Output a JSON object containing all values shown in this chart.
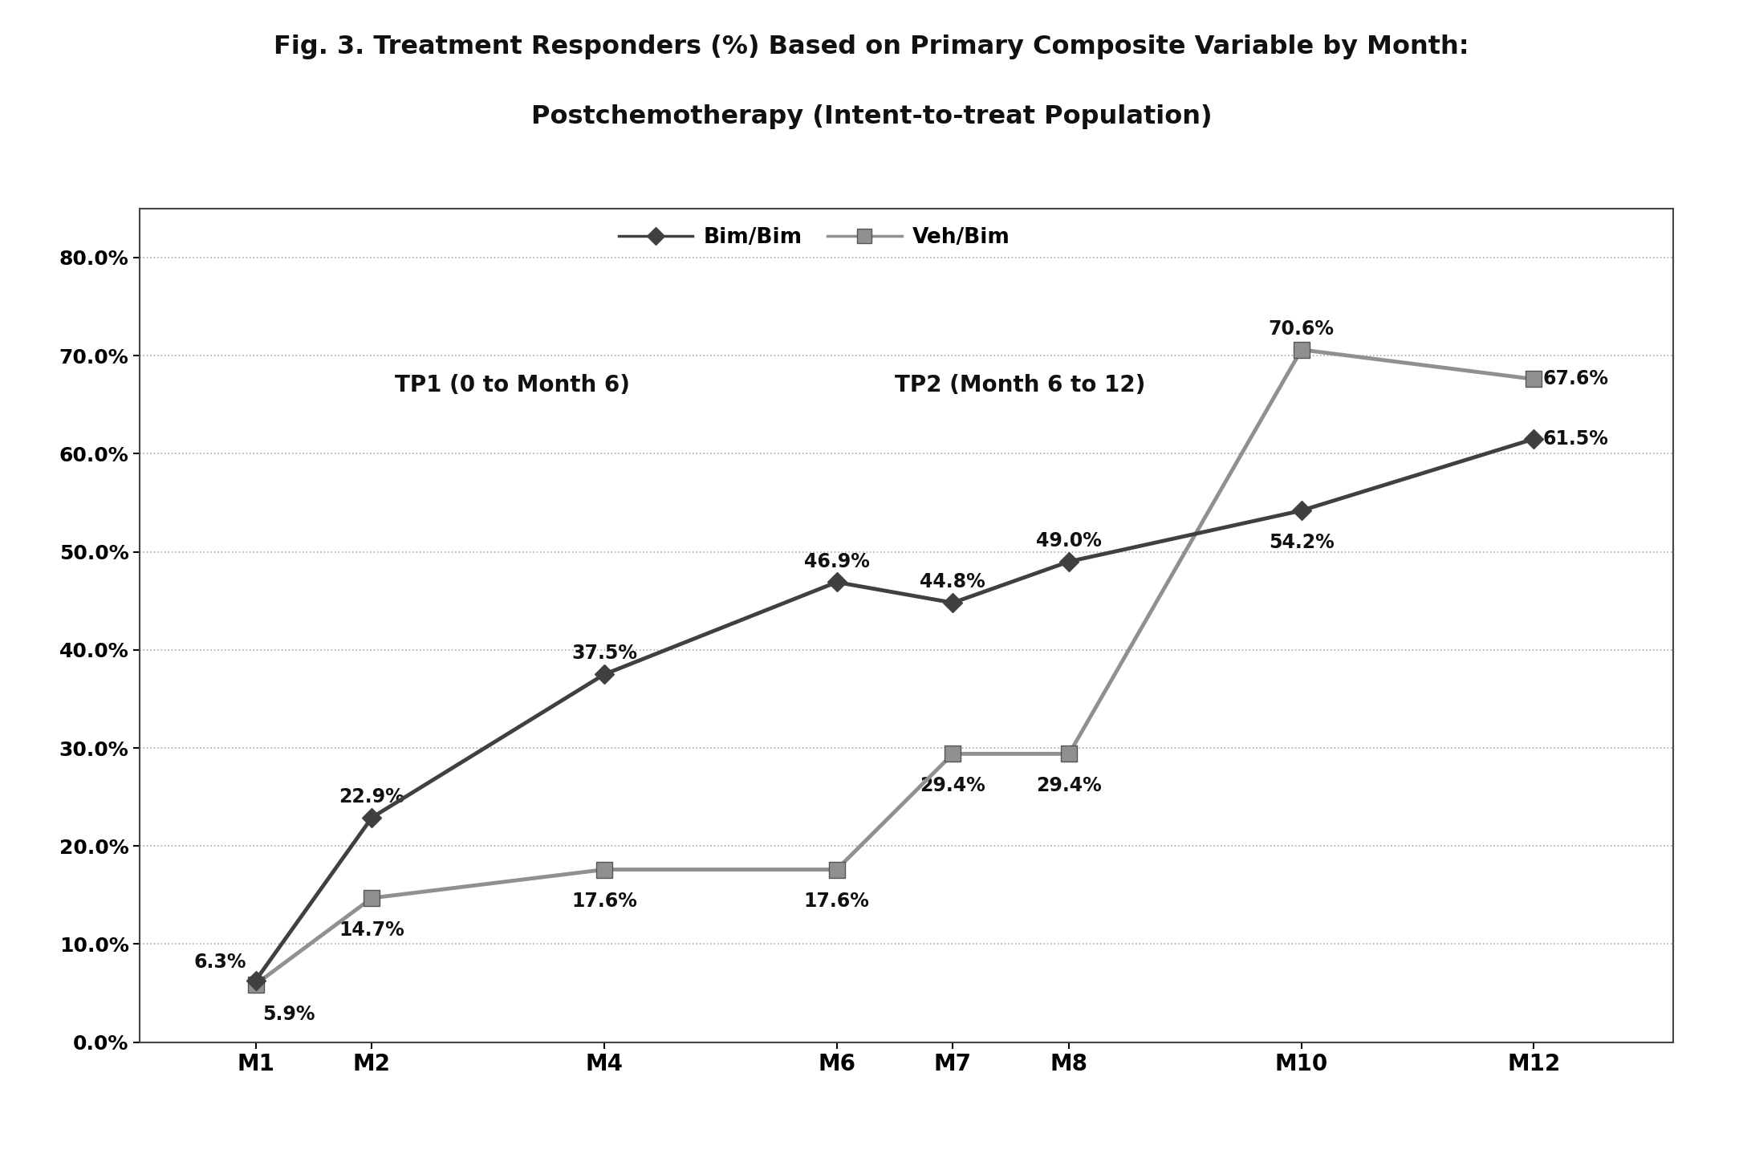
{
  "title_line1": "Fig. 3. Treatment Responders (%) Based on Primary Composite Variable by Month:",
  "title_line2": "Postchemotherapy (Intent-to-treat Population)",
  "x_labels": [
    "M1",
    "M2",
    "M4",
    "M6",
    "M7",
    "M8",
    "M10",
    "M12"
  ],
  "x_positions": [
    1,
    2,
    4,
    6,
    7,
    8,
    10,
    12
  ],
  "bim_bim_values": [
    6.3,
    22.9,
    37.5,
    46.9,
    44.8,
    49.0,
    54.2,
    61.5
  ],
  "veh_bim_values": [
    5.9,
    14.7,
    17.6,
    17.6,
    29.4,
    29.4,
    70.6,
    67.6
  ],
  "bim_bim_labels": [
    "6.3%",
    "22.9%",
    "37.5%",
    "46.9%",
    "44.8%",
    "49.0%",
    "54.2%",
    "61.5%"
  ],
  "veh_bim_labels": [
    "5.9%",
    "14.7%",
    "17.6%",
    "17.6%",
    "29.4%",
    "29.4%",
    "70.6%",
    "67.6%"
  ],
  "bim_bim_color": "#404040",
  "veh_bim_color": "#909090",
  "ylim": [
    0,
    85
  ],
  "yticks": [
    0,
    10,
    20,
    30,
    40,
    50,
    60,
    70,
    80
  ],
  "ytick_labels": [
    "0.0%",
    "10.0%",
    "20.0%",
    "30.0%",
    "40.0%",
    "50.0%",
    "60.0%",
    "70.0%",
    "80.0%"
  ],
  "legend_bim_label": "Bim/Bim",
  "legend_veh_label": "Veh/Bim",
  "tp1_text": "TP1 (0 to Month 6)",
  "tp2_text": "TP2 (Month 6 to 12)",
  "background_color": "#ffffff",
  "plot_bg_color": "#ffffff"
}
